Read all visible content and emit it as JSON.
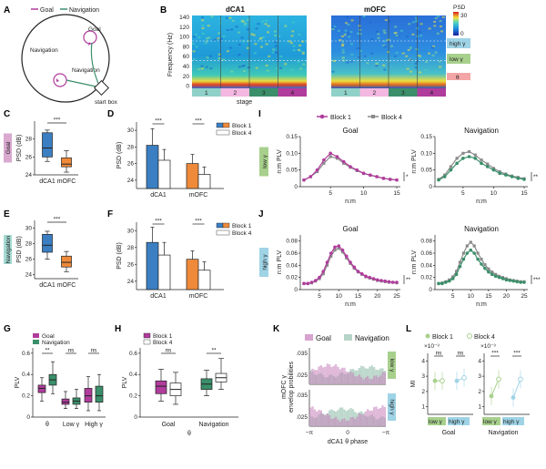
{
  "panel_letters": [
    "A",
    "B",
    "C",
    "D",
    "E",
    "F",
    "G",
    "H",
    "I",
    "J",
    "K",
    "L"
  ],
  "colors": {
    "goal": "#b03c9c",
    "navigation": "#3a8f6a",
    "dca1": "#3b7fc2",
    "mofc": "#ee8a3a",
    "block4": "#8a8a8a",
    "lowg": "#a8d08d",
    "highg": "#9fd3e6",
    "theta": "#f4a6a6"
  },
  "panelA": {
    "legend_goal": "Goal",
    "legend_nav": "Navigation",
    "goal": "Goal",
    "navigation_upper": "Navigation",
    "navigation_lower": "Navigation",
    "start_box": "start box"
  },
  "panelB": {
    "title_left": "dCA1",
    "title_right": "mOFC",
    "ylabel": "Frequency (Hz)",
    "xlabel": "stage",
    "yticks": [
      "140",
      "120",
      "100",
      "80",
      "60",
      "40",
      "20",
      "0"
    ],
    "stages": [
      "1",
      "2",
      "3",
      "4"
    ],
    "cbar_label": "PSD",
    "cbar_max": "30",
    "cbar_min": "0",
    "band_high": "high γ",
    "band_low": "low γ",
    "band_theta": "θ"
  },
  "panelC": {
    "side_label": "Goal",
    "ylabel": "PSD (dB)",
    "yticks": [
      "28",
      "26",
      "24"
    ],
    "categories": [
      "dCA1",
      "mOFC"
    ],
    "sig": "***",
    "boxes": [
      {
        "min": 25.5,
        "q1": 26.0,
        "med": 27.0,
        "q3": 28.7,
        "max": 29.0
      },
      {
        "min": 24.3,
        "q1": 24.9,
        "med": 25.2,
        "q3": 25.9,
        "max": 26.7
      }
    ],
    "ylim": [
      24,
      30
    ]
  },
  "panelD": {
    "ylabel": "PSD (dB)",
    "yticks": [
      "30",
      "28",
      "26",
      "24"
    ],
    "categories": [
      "dCA1",
      "mOFC"
    ],
    "sig": [
      "***",
      "***"
    ],
    "legend": [
      "Block 1",
      "Block 4"
    ],
    "values": [
      [
        28.2,
        26.4
      ],
      [
        26.0,
        24.7
      ]
    ],
    "err": [
      [
        2.0,
        1.3
      ],
      [
        1.1,
        0.9
      ]
    ],
    "ylim": [
      23,
      31
    ]
  },
  "panelE": {
    "side_label": "Navigation",
    "ylabel": "PSD (dB)",
    "yticks": [
      "30",
      "28",
      "26",
      "24"
    ],
    "categories": [
      "dCA1",
      "mOFC"
    ],
    "sig": "***",
    "boxes": [
      {
        "min": 26.0,
        "q1": 26.9,
        "med": 27.8,
        "q3": 29.2,
        "max": 29.6
      },
      {
        "min": 24.4,
        "q1": 25.0,
        "med": 25.6,
        "q3": 26.4,
        "max": 27.0
      }
    ],
    "ylim": [
      23.5,
      31
    ]
  },
  "panelF": {
    "ylabel": "PSD (dB)",
    "yticks": [
      "30",
      "28",
      "26",
      "24"
    ],
    "categories": [
      "dCA1",
      "mOFC"
    ],
    "sig": [
      "***",
      "***"
    ],
    "legend": [
      "Block 1",
      "Block 4"
    ],
    "values": [
      [
        28.6,
        27.1
      ],
      [
        26.6,
        25.3
      ]
    ],
    "err": [
      [
        1.8,
        1.5
      ],
      [
        1.0,
        1.0
      ]
    ],
    "ylim": [
      23,
      31
    ]
  },
  "panelG": {
    "legend": [
      "Goal",
      "Navigation"
    ],
    "ylabel": "PLV",
    "yticks": [
      "0.6",
      "0.4",
      "0.2",
      "0"
    ],
    "categories": [
      "θ",
      "Low γ",
      "High γ"
    ],
    "sig": [
      "**",
      "ns",
      "ns"
    ],
    "boxes": [
      [
        {
          "min": 0.15,
          "q1": 0.23,
          "med": 0.27,
          "q3": 0.3,
          "max": 0.37
        },
        {
          "min": 0.22,
          "q1": 0.3,
          "med": 0.35,
          "q3": 0.4,
          "max": 0.52
        }
      ],
      [
        {
          "min": 0.08,
          "q1": 0.12,
          "med": 0.14,
          "q3": 0.17,
          "max": 0.24
        },
        {
          "min": 0.08,
          "q1": 0.12,
          "med": 0.15,
          "q3": 0.18,
          "max": 0.26
        }
      ],
      [
        {
          "min": 0.06,
          "q1": 0.14,
          "med": 0.2,
          "q3": 0.27,
          "max": 0.38
        },
        {
          "min": 0.06,
          "q1": 0.14,
          "med": 0.2,
          "q3": 0.29,
          "max": 0.4
        }
      ]
    ],
    "ylim": [
      0,
      0.65
    ]
  },
  "panelH": {
    "legend": [
      "Block 1",
      "Block 4"
    ],
    "ylabel": "PLV",
    "yticks": [
      "0.6",
      "0.4",
      "0.2",
      "0"
    ],
    "categories": [
      "Goal",
      "Navigation"
    ],
    "xlabel": "θ",
    "sig": [
      "ns",
      "**"
    ],
    "boxes": [
      [
        {
          "min": 0.15,
          "q1": 0.22,
          "med": 0.29,
          "q3": 0.34,
          "max": 0.45
        },
        {
          "min": 0.12,
          "q1": 0.2,
          "med": 0.26,
          "q3": 0.32,
          "max": 0.42
        }
      ],
      [
        {
          "min": 0.2,
          "q1": 0.26,
          "med": 0.31,
          "q3": 0.36,
          "max": 0.44
        },
        {
          "min": 0.26,
          "q1": 0.33,
          "med": 0.37,
          "q3": 0.41,
          "max": 0.55
        }
      ]
    ],
    "ylim": [
      0,
      0.65
    ]
  },
  "panelI": {
    "legend": [
      "Block 1",
      "Block 4"
    ],
    "band_label": "low γ",
    "titles": [
      "Goal",
      "Navigation"
    ],
    "ylabel": "n:m PLV",
    "xlabel": "n:m",
    "yticks": [
      "0.15",
      "0.10",
      "0.05",
      "0"
    ],
    "xticks": [
      "5",
      "10",
      "15"
    ],
    "sig": [
      "*",
      "**"
    ],
    "x": [
      1,
      2,
      3,
      4,
      5,
      6,
      7,
      8,
      9,
      10,
      11,
      12,
      13,
      14,
      15
    ],
    "goal_b1": [
      0.02,
      0.03,
      0.05,
      0.08,
      0.1,
      0.09,
      0.075,
      0.06,
      0.05,
      0.04,
      0.035,
      0.03,
      0.025,
      0.022,
      0.02
    ],
    "goal_b4": [
      0.02,
      0.03,
      0.045,
      0.07,
      0.09,
      0.085,
      0.07,
      0.058,
      0.048,
      0.04,
      0.034,
      0.03,
      0.025,
      0.022,
      0.02
    ],
    "nav_b1": [
      0.02,
      0.03,
      0.05,
      0.07,
      0.085,
      0.09,
      0.085,
      0.07,
      0.06,
      0.05,
      0.04,
      0.035,
      0.03,
      0.025,
      0.022
    ],
    "nav_b4": [
      0.022,
      0.035,
      0.06,
      0.085,
      0.1,
      0.105,
      0.095,
      0.08,
      0.068,
      0.055,
      0.045,
      0.038,
      0.032,
      0.028,
      0.024
    ],
    "ylim": [
      0,
      0.15
    ]
  },
  "panelJ": {
    "band_label": "high γ",
    "titles": [
      "Goal",
      "Navigation"
    ],
    "ylabel": "n:m PLV",
    "xlabel": "n:m",
    "yticks": [
      "0.08",
      "0.06",
      "0.04",
      "0.02",
      "0"
    ],
    "xticks": [
      "5",
      "10",
      "15",
      "20",
      "25"
    ],
    "sig": [
      "**",
      "***"
    ],
    "x": [
      1,
      2,
      3,
      4,
      5,
      6,
      7,
      8,
      9,
      10,
      11,
      12,
      13,
      14,
      15,
      16,
      17,
      18,
      19,
      20,
      21,
      22,
      23,
      24,
      25
    ],
    "goal_b1": [
      0.01,
      0.01,
      0.012,
      0.015,
      0.02,
      0.03,
      0.045,
      0.06,
      0.07,
      0.072,
      0.065,
      0.055,
      0.045,
      0.037,
      0.03,
      0.026,
      0.022,
      0.02,
      0.018,
      0.016,
      0.015,
      0.014,
      0.013,
      0.012,
      0.012
    ],
    "goal_b4": [
      0.01,
      0.01,
      0.011,
      0.014,
      0.018,
      0.026,
      0.04,
      0.055,
      0.065,
      0.068,
      0.062,
      0.052,
      0.043,
      0.035,
      0.029,
      0.025,
      0.021,
      0.019,
      0.017,
      0.015,
      0.014,
      0.013,
      0.012,
      0.012,
      0.011
    ],
    "nav_b1": [
      0.01,
      0.01,
      0.012,
      0.014,
      0.018,
      0.025,
      0.038,
      0.05,
      0.06,
      0.065,
      0.06,
      0.05,
      0.042,
      0.035,
      0.029,
      0.025,
      0.022,
      0.02,
      0.018,
      0.016,
      0.015,
      0.014,
      0.013,
      0.012,
      0.012
    ],
    "nav_b4": [
      0.01,
      0.011,
      0.013,
      0.016,
      0.021,
      0.03,
      0.045,
      0.06,
      0.072,
      0.078,
      0.072,
      0.06,
      0.05,
      0.041,
      0.034,
      0.029,
      0.025,
      0.022,
      0.02,
      0.018,
      0.016,
      0.015,
      0.014,
      0.013,
      0.013
    ],
    "ylim": [
      0,
      0.09
    ]
  },
  "panelK": {
    "legend": [
      "Goal",
      "Navigation"
    ],
    "ylabel_1": "mOFC γ",
    "ylabel_2": "envelop probilities",
    "yticks": [
      ".035",
      ".025"
    ],
    "xticks": [
      "−π",
      "0",
      "−π"
    ],
    "xlabel": "dCA1 θ phase",
    "band_top": "low γ",
    "band_bottom": "high γ"
  },
  "panelL": {
    "legend": [
      "Block 1",
      "Block 4"
    ],
    "ylabel": "MI",
    "exp": "×10⁻³",
    "yticks_left": [
      "4",
      "3",
      "2",
      "1"
    ],
    "yticks_right": [
      "4",
      "3",
      "2",
      "1"
    ],
    "cat_labels": [
      "low γ",
      "high γ"
    ],
    "group_labels": [
      "Goal",
      "Navigation"
    ],
    "sig_left": [
      "ns",
      "ns"
    ],
    "sig_right": [
      "***",
      "***"
    ],
    "goal": {
      "lowg": [
        2.7,
        2.7
      ],
      "highg": [
        2.7,
        2.9
      ]
    },
    "navigation": {
      "lowg": [
        1.7,
        2.8
      ],
      "highg": [
        1.6,
        2.8
      ]
    },
    "ylim": [
      0.5,
      4.5
    ]
  }
}
